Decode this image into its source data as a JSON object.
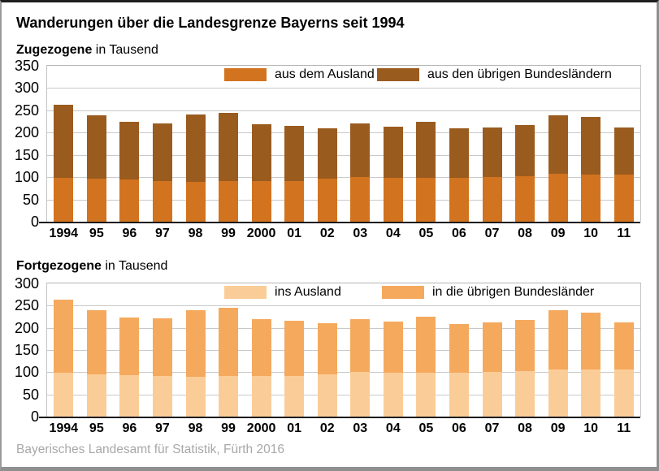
{
  "title": "Wanderungen über die Landesgrenze Bayerns seit 1994",
  "source": "Bayerisches Landesamt für Statistik, Fürth 2016",
  "colors": {
    "zugezogene_ausland": "#D2731F",
    "zugezogene_bundeslaender": "#9A5B1F",
    "fortgezogene_ausland": "#FACD98",
    "fortgezogene_bundeslaender": "#F5A95D",
    "gridline": "#C9C9C9",
    "axis": "#1A1A1A",
    "source_text": "#A8A8A8"
  },
  "chart_data": [
    {
      "type": "bar",
      "stacked": true,
      "title": "Zugezogene",
      "subtitle": "in Tausend",
      "ylim": [
        0,
        350
      ],
      "ytick_step": 50,
      "grid": true,
      "legend_position": "top-inside",
      "categories": [
        "1994",
        "95",
        "96",
        "97",
        "98",
        "99",
        "2000",
        "01",
        "02",
        "03",
        "04",
        "05",
        "06",
        "07",
        "08",
        "09",
        "10",
        "11"
      ],
      "series": [
        {
          "name": "aus dem Ausland",
          "color": "#D2731F",
          "values": [
            98,
            96,
            94,
            92,
            90,
            91,
            91,
            92,
            96,
            100,
            98,
            98,
            99,
            100,
            102,
            107,
            106,
            106
          ]
        },
        {
          "name": "aus den übrigen Bundesländern",
          "color": "#9A5B1F",
          "values": [
            165,
            143,
            130,
            129,
            150,
            154,
            128,
            124,
            114,
            120,
            116,
            127,
            110,
            112,
            115,
            132,
            129,
            106
          ]
        }
      ]
    },
    {
      "type": "bar",
      "stacked": true,
      "title": "Fortgezogene",
      "subtitle": "in Tausend",
      "ylim": [
        0,
        300
      ],
      "ytick_step": 50,
      "grid": true,
      "legend_position": "top-inside",
      "categories": [
        "1994",
        "95",
        "96",
        "97",
        "98",
        "99",
        "2000",
        "01",
        "02",
        "03",
        "04",
        "05",
        "06",
        "07",
        "08",
        "09",
        "10",
        "11"
      ],
      "series": [
        {
          "name": "ins Ausland",
          "color": "#FACD98",
          "values": [
            98,
            96,
            94,
            92,
            90,
            91,
            91,
            92,
            96,
            100,
            98,
            98,
            99,
            100,
            102,
            107,
            106,
            106
          ]
        },
        {
          "name": "in die übrigen Bundesländer",
          "color": "#F5A95D",
          "values": [
            165,
            143,
            130,
            129,
            150,
            154,
            128,
            124,
            114,
            120,
            116,
            127,
            110,
            112,
            115,
            132,
            129,
            106
          ]
        }
      ]
    }
  ]
}
